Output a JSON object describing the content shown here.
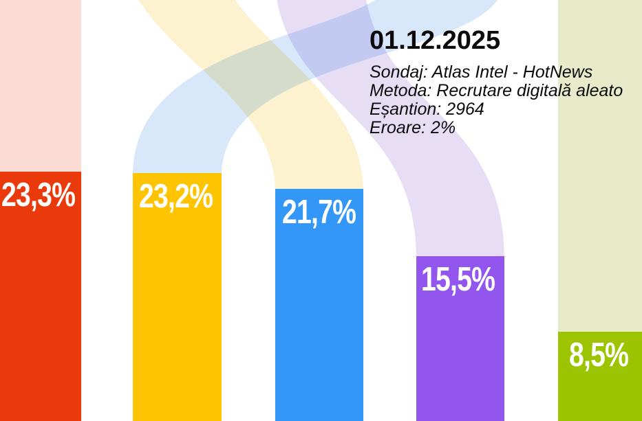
{
  "header": {
    "date": "01.12.2025",
    "lines": [
      "Sondaj: Atlas Intel - HotNews",
      "Metoda: Recrutare digitală aleato",
      "Eșantion: 2964",
      "Eroare: 2%"
    ]
  },
  "chart_data": {
    "type": "bar",
    "title": "01.12.2025",
    "subtitle": "Sondaj: Atlas Intel - HotNews",
    "sample_size": "2964",
    "error_margin": "2%",
    "values": [
      23.3,
      23.2,
      21.7,
      15.5,
      8.5
    ],
    "labels": [
      "23,3%",
      "23,2%",
      "21,7%",
      "15,5%",
      "8,5%"
    ],
    "unit": "%",
    "decimal_separator": ",",
    "bar_colors": [
      "#ea390b",
      "#fec402",
      "#3297f7",
      "#9256ef",
      "#9cc401"
    ],
    "ribbon_colors": [
      "#fadcd4",
      "#d8e8fa",
      "#fdf2cf",
      "#e7def6",
      "#e7ebca"
    ],
    "background_color": "#ffffff",
    "label_color": "#ffffff",
    "ylim": [
      0,
      25
    ],
    "grid": false,
    "legend": false,
    "notes": "faded flow ribbons behind each bar indicate rank changes"
  }
}
